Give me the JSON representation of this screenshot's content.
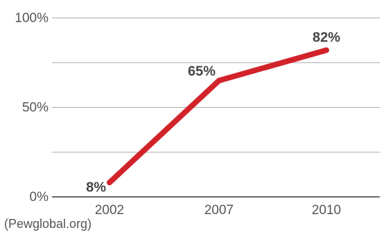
{
  "chart_data": {
    "type": "line",
    "x": [
      "2002",
      "2007",
      "2010"
    ],
    "series": [
      {
        "values": [
          8,
          65,
          82
        ],
        "color": "#d2232a"
      }
    ],
    "data_labels": [
      "8%",
      "65%",
      "82%"
    ],
    "y_ticks": [
      {
        "value": 0,
        "label": "0%"
      },
      {
        "value": 50,
        "label": "50%"
      },
      {
        "value": 100,
        "label": "100%"
      }
    ],
    "gridlines": [
      0,
      25,
      50,
      75,
      100
    ],
    "ylim": [
      0,
      100
    ],
    "grid": true,
    "title": "",
    "xlabel": "",
    "ylabel": "",
    "colors": {
      "grid": "#aaaaaa",
      "axis": "#333333"
    }
  },
  "source": "(Pewglobal.org)"
}
